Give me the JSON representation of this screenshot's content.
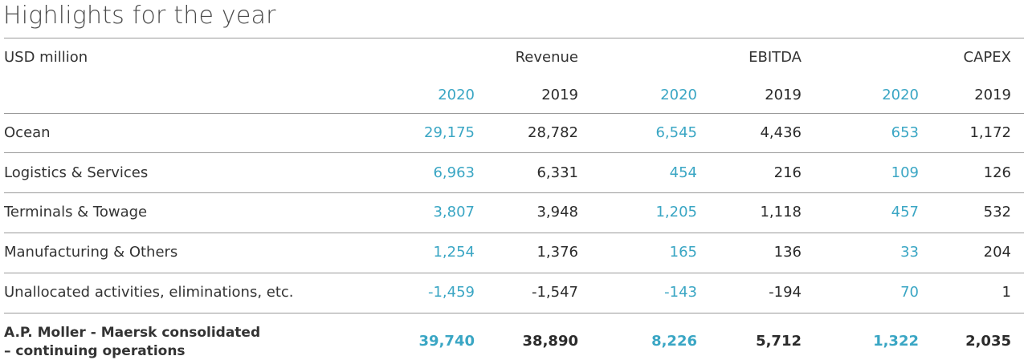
{
  "title": "Highlights for the year",
  "unit_label": "USD million",
  "groups": [
    "Revenue",
    "EBITDA",
    "CAPEX"
  ],
  "years": [
    "2020",
    "2019",
    "2020",
    "2019",
    "2020",
    "2019"
  ],
  "rows": [
    {
      "label": "Ocean",
      "values": [
        "29,175",
        "28,782",
        "6,545",
        "4,436",
        "653",
        "1,172"
      ]
    },
    {
      "label": "Logistics & Services",
      "values": [
        "6,963",
        "6,331",
        "454",
        "216",
        "109",
        "126"
      ]
    },
    {
      "label": "Terminals & Towage",
      "values": [
        "3,807",
        "3,948",
        "1,205",
        "1,118",
        "457",
        "532"
      ]
    },
    {
      "label": "Manufacturing & Others",
      "values": [
        "1,254",
        "1,376",
        "165",
        "136",
        "33",
        "204"
      ]
    },
    {
      "label": "Unallocated activities, eliminations, etc.",
      "values": [
        "-1,459",
        "-1,547",
        "-143",
        "-194",
        "70",
        "1"
      ]
    }
  ],
  "total": {
    "label_line1": "A.P. Moller - Maersk consolidated",
    "label_line2": "– continuing operations",
    "values": [
      "39,740",
      "38,890",
      "8,226",
      "5,712",
      "1,322",
      "2,035"
    ]
  },
  "colors": {
    "highlight_2020": "#3aa6c4",
    "text": "#2b2b2b",
    "rule": "#9a9a9a"
  }
}
